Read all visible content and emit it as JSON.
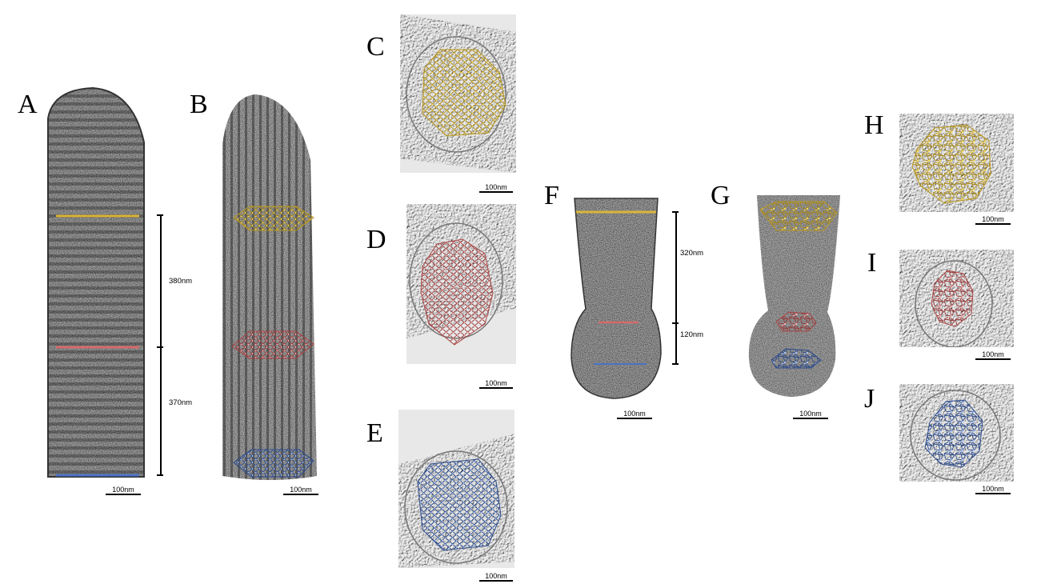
{
  "panels": {
    "A": {
      "label": "A",
      "scale": "100nm",
      "measure_top": "380nm",
      "measure_bottom": "370nm"
    },
    "B": {
      "label": "B",
      "scale": "100nm"
    },
    "C": {
      "label": "C",
      "scale": "100nm"
    },
    "D": {
      "label": "D",
      "scale": "100nm"
    },
    "E": {
      "label": "E",
      "scale": "100nm"
    },
    "F": {
      "label": "F",
      "scale": "100nm",
      "measure_top": "320nm",
      "measure_bottom": "120nm"
    },
    "G": {
      "label": "G",
      "scale": "100nm"
    },
    "H": {
      "label": "H",
      "scale": "100nm"
    },
    "I": {
      "label": "I",
      "scale": "100nm"
    },
    "J": {
      "label": "J",
      "scale": "100nm"
    }
  },
  "colors": {
    "yellow": "#d9b53a",
    "red": "#d46a6a",
    "blue": "#4a72c4",
    "grain": "#7a7a7a",
    "slab": "#a9a9a9"
  }
}
